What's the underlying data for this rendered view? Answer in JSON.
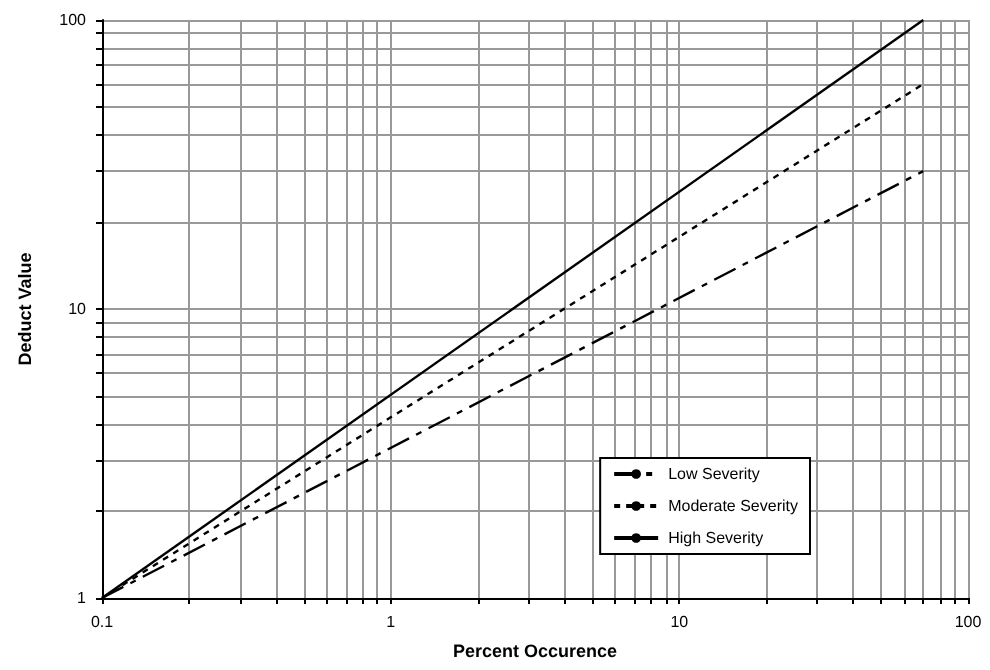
{
  "chart_data": {
    "type": "line",
    "xlabel": "Percent Occurence",
    "ylabel": "Deduct Value",
    "log": "xy",
    "grid": true,
    "legend": "bottom right",
    "marker": "none",
    "xlim": [
      0.1,
      100
    ],
    "ylim": [
      1,
      100
    ],
    "xticks": [
      0.1,
      {
        "value": 0.2,
        "label": null
      },
      {
        "value": 0.3,
        "label": null
      },
      {
        "value": 0.4,
        "label": null
      },
      {
        "value": 0.5,
        "label": null
      },
      {
        "value": 0.6,
        "label": null
      },
      {
        "value": 0.7,
        "label": null
      },
      {
        "value": 0.8,
        "label": null
      },
      {
        "value": 0.9,
        "label": null
      },
      1,
      {
        "value": 2,
        "label": null
      },
      {
        "value": 3,
        "label": null
      },
      {
        "value": 4,
        "label": null
      },
      {
        "value": 5,
        "label": null
      },
      {
        "value": 6,
        "label": null
      },
      {
        "value": 7,
        "label": null
      },
      {
        "value": 8,
        "label": null
      },
      {
        "value": 9,
        "label": null
      },
      10,
      {
        "value": 20,
        "label": null
      },
      {
        "value": 30,
        "label": null
      },
      {
        "value": 40,
        "label": null
      },
      {
        "value": 50,
        "label": null
      },
      {
        "value": 60,
        "label": null
      },
      {
        "value": 70,
        "label": null
      },
      {
        "value": 80,
        "label": null
      },
      {
        "value": 90,
        "label": null
      },
      100
    ],
    "yticks": [
      1,
      {
        "value": 2,
        "label": null
      },
      {
        "value": 3,
        "label": null
      },
      {
        "value": 4,
        "label": null
      },
      {
        "value": 5,
        "label": null
      },
      {
        "value": 6,
        "label": null
      },
      {
        "value": 7,
        "label": null
      },
      {
        "value": 8,
        "label": null
      },
      {
        "value": 9,
        "label": null
      },
      10,
      {
        "value": 20,
        "label": null
      },
      {
        "value": 30,
        "label": null
      },
      {
        "value": 40,
        "label": null
      },
      {
        "value": 50,
        "label": null
      },
      {
        "value": 60,
        "label": null
      },
      {
        "value": 70,
        "label": null
      },
      {
        "value": 80,
        "label": null
      },
      {
        "value": 90,
        "label": null
      },
      100
    ],
    "x": [
      0.1,
      70
    ],
    "series": [
      {
        "name": "Low Severity",
        "color": "#000000",
        "line_style": "dashdot",
        "values": [
          1,
          30
        ]
      },
      {
        "name": "Moderate Severity",
        "color": "#000000",
        "line_style": "dashed",
        "values": [
          1,
          60
        ]
      },
      {
        "name": "High Severity",
        "color": "#000000",
        "line_style": "solid",
        "values": [
          1,
          100
        ]
      }
    ]
  }
}
